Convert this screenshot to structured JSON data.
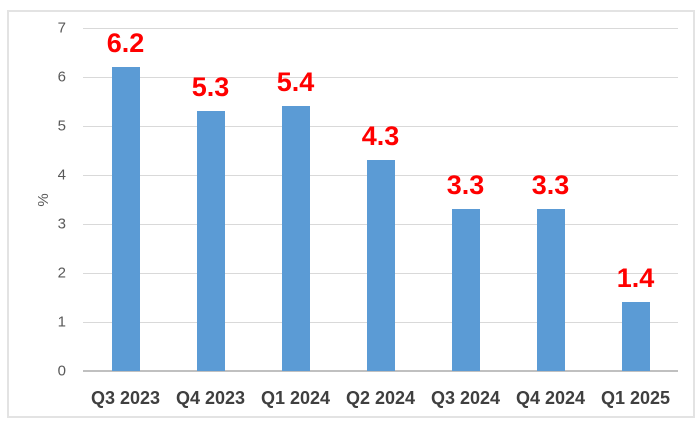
{
  "chart_data": {
    "type": "bar",
    "categories": [
      "Q3 2023",
      "Q4 2023",
      "Q1 2024",
      "Q2 2024",
      "Q3 2024",
      "Q4 2024",
      "Q1 2025"
    ],
    "values": [
      6.2,
      5.3,
      5.4,
      4.3,
      3.3,
      3.3,
      1.4
    ],
    "data_labels": [
      "6.2",
      "5.3",
      "5.4",
      "4.3",
      "3.3",
      "3.3",
      "1.4"
    ],
    "title": "",
    "xlabel": "",
    "ylabel": "%",
    "ylim": [
      0,
      7
    ],
    "yticks": [
      0,
      1,
      2,
      3,
      4,
      5,
      6,
      7
    ],
    "grid": true,
    "legend": "none",
    "colors": {
      "bar": "#5b9bd5",
      "data_label": "#ff0000",
      "gridline": "#d9d9d9",
      "axis_line": "#c0c0c0",
      "tick_label": "#595959",
      "category_label": "#3f3f3f",
      "frame_border": "#e3e3e3",
      "background": "#ffffff"
    }
  }
}
